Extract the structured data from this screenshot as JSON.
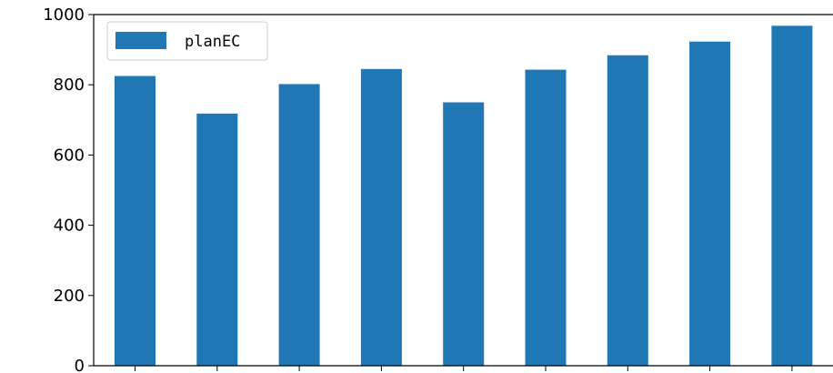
{
  "chart_data": {
    "type": "bar",
    "title": "",
    "xlabel": "",
    "ylabel": "",
    "ylim": [
      0,
      1000
    ],
    "yticks": [
      0,
      200,
      400,
      600,
      800,
      1000
    ],
    "grid": false,
    "legend_position": "top-left",
    "series": [
      {
        "name": "planEC",
        "color": "#1f77b4",
        "values": [
          825,
          718,
          802,
          845,
          750,
          843,
          884,
          923,
          968
        ]
      }
    ]
  }
}
